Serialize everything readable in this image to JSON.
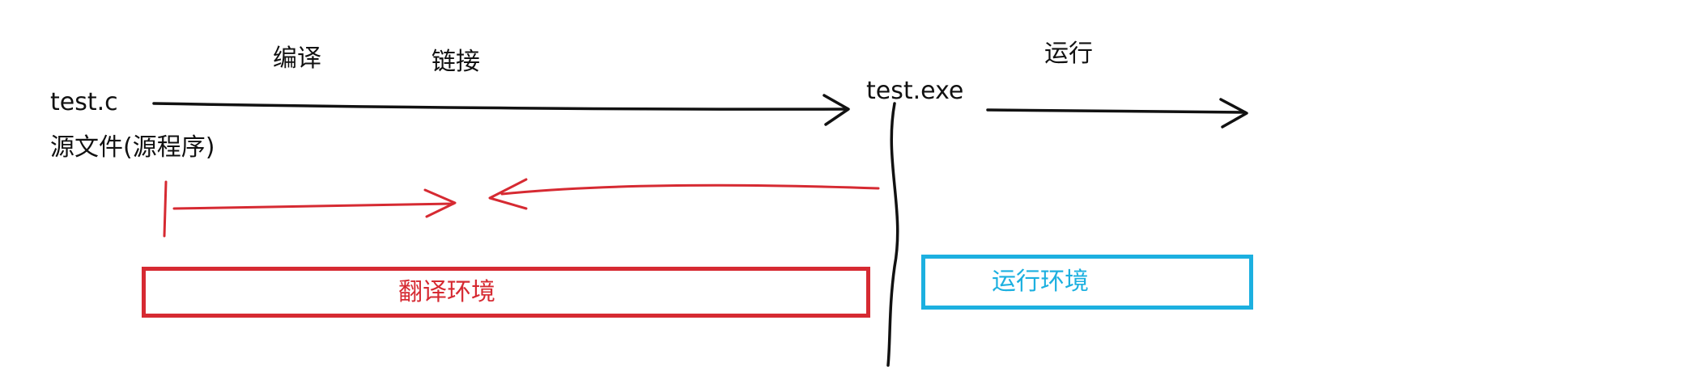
{
  "labels": {
    "compile": "编译",
    "link": "链接",
    "run": "运行",
    "source_file": "test.c",
    "source_desc": "源文件(源程序)",
    "executable": "test.exe"
  },
  "boxes": {
    "translation_env": "翻译环境",
    "runtime_env": "运行环境"
  },
  "colors": {
    "ink": "#111111",
    "translation": "#d62a32",
    "runtime": "#1cb0e0"
  }
}
